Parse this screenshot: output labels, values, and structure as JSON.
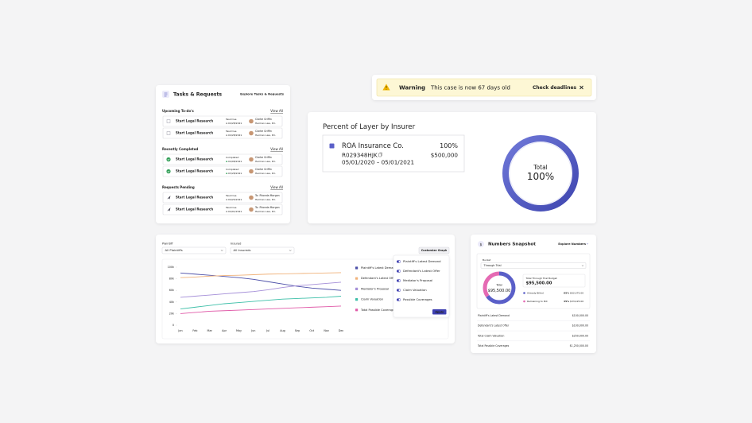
{
  "tasks": {
    "title": "Tasks & Requests",
    "link": "Explore Tasks & Requests",
    "sections": [
      {
        "heading": "Upcoming To-do's",
        "link": "View All",
        "rows": [
          {
            "title": "Start Legal Research",
            "status": "Task Due",
            "date": "04/28/2021",
            "contact": "Clarke Griffin",
            "firm": "Herman Law, P.C."
          },
          {
            "title": "Start Legal Research",
            "status": "Task Due",
            "date": "04/28/2021",
            "contact": "Clarke Griffin",
            "firm": "Herman Law, P.C."
          }
        ]
      },
      {
        "heading": "Recently Completed",
        "link": "View All",
        "rows": [
          {
            "title": "Start Legal Research",
            "status": "Completed",
            "date": "04/08/2021",
            "contact": "Clarke Griffin",
            "firm": "Herman Law, P.C."
          },
          {
            "title": "Start Legal Research",
            "status": "Completed",
            "date": "03/28/2021",
            "contact": "Clarke Griffin",
            "firm": "Herman Law, P.C."
          }
        ]
      },
      {
        "heading": "Requests Pending",
        "link": "View All",
        "rows": [
          {
            "title": "Start Legal Research",
            "status": "Task Due",
            "date": "04/25/2021",
            "contact": "To: Rhonda Morgan",
            "firm": "Herman Law, P.C."
          },
          {
            "title": "Start Legal Research",
            "status": "Task Due",
            "date": "04/01/2021",
            "contact": "To: Rhonda Morgan",
            "firm": "Herman Law, P.C."
          }
        ]
      }
    ]
  },
  "warning": {
    "title": "Warning",
    "message": "This case is now 67 days old",
    "action": "Check deadlines"
  },
  "layer": {
    "title": "Percent of Layer by Insurer",
    "insurer": "ROA Insurance Co.",
    "percent": "100%",
    "policy": "R029348HJK",
    "amount": "$500,000",
    "period": "05/01/2020 – 05/01/2021",
    "total_label": "Total",
    "total": "100%"
  },
  "chart_data": {
    "type": "line",
    "filters": [
      {
        "label": "Plaintiff",
        "value": "All Plaintiffs"
      },
      {
        "label": "Insured",
        "value": "All Insureds"
      }
    ],
    "button": "Customize Graph",
    "categories": [
      "Jan",
      "Feb",
      "Mar",
      "Apr",
      "May",
      "Jun",
      "Jul",
      "Aug",
      "Sep",
      "Oct",
      "Nov",
      "Dec"
    ],
    "ylim": [
      0,
      100000
    ],
    "yticks": [
      0,
      {
        "value": 20000,
        "label": "20k"
      },
      {
        "value": 40000,
        "label": "40k"
      },
      {
        "value": 60000,
        "label": "60k"
      },
      {
        "value": 80000,
        "label": "80k"
      },
      {
        "value": 100000,
        "label": "100k"
      }
    ],
    "grid": false,
    "series": [
      {
        "name": "Plaintiff's Latest Demand",
        "color": "#4c4fa8",
        "values": [
          90000,
          88000,
          86000,
          84000,
          82000,
          79000,
          75000,
          71000,
          67000,
          64000,
          62000,
          60000
        ]
      },
      {
        "name": "Defendant's Latest Offer",
        "color": "#f0b27a",
        "values": [
          82000,
          83000,
          84500,
          85500,
          86000,
          87000,
          88000,
          88500,
          89000,
          89500,
          90000,
          90500
        ]
      },
      {
        "name": "Mediator's Proposal",
        "color": "#a58fd8",
        "values": [
          48000,
          50000,
          52000,
          54000,
          56000,
          58000,
          61000,
          65000,
          68000,
          70000,
          72000,
          74000
        ]
      },
      {
        "name": "Claim Valuation",
        "color": "#3dbfa8",
        "values": [
          28000,
          31000,
          34000,
          37000,
          39000,
          41000,
          43000,
          45000,
          46000,
          47000,
          48000,
          50000
        ]
      },
      {
        "name": "Total Possible Coverages",
        "color": "#e05aa8",
        "values": [
          20000,
          22000,
          24000,
          25000,
          26000,
          27000,
          28000,
          29000,
          30000,
          31000,
          32000,
          33000
        ]
      }
    ],
    "menu": {
      "items": [
        "Plaintiff's Latest Demand",
        "Defendant's Latest Offer",
        "Mediator's Proposal",
        "Claim Valuation",
        "Possible Coverages"
      ],
      "apply": "Apply"
    }
  },
  "snapshot": {
    "title": "Numbers Snapshot",
    "link": "Explore Numbers",
    "bucket_label": "Bucket",
    "bucket": "Through Trial",
    "total_label": "Total",
    "total": "$95,500.00",
    "budget_label": "Total Through Trial Budget",
    "budget": "$95,500.00",
    "legend": [
      {
        "label": "Already Billed",
        "color": "#5a5fc8",
        "pct": {
          "value": 65,
          "label": "65%"
        },
        "amount": "$62,075.00"
      },
      {
        "label": "Remaining to Bill",
        "color": "#e56ab3",
        "pct": {
          "value": 35,
          "label": "35%"
        },
        "amount": "$33,425.00"
      }
    ],
    "rows": [
      {
        "label": "Plaintiff's Latest Demand",
        "value": "$100,000.00"
      },
      {
        "label": "Defendant's Latest Offer",
        "value": "$100,000.00"
      },
      {
        "label": "Total Claim Valuation",
        "value": "$250,000.00"
      },
      {
        "label": "Total Possible Coverages",
        "value": "$1,250,000.00"
      }
    ]
  }
}
